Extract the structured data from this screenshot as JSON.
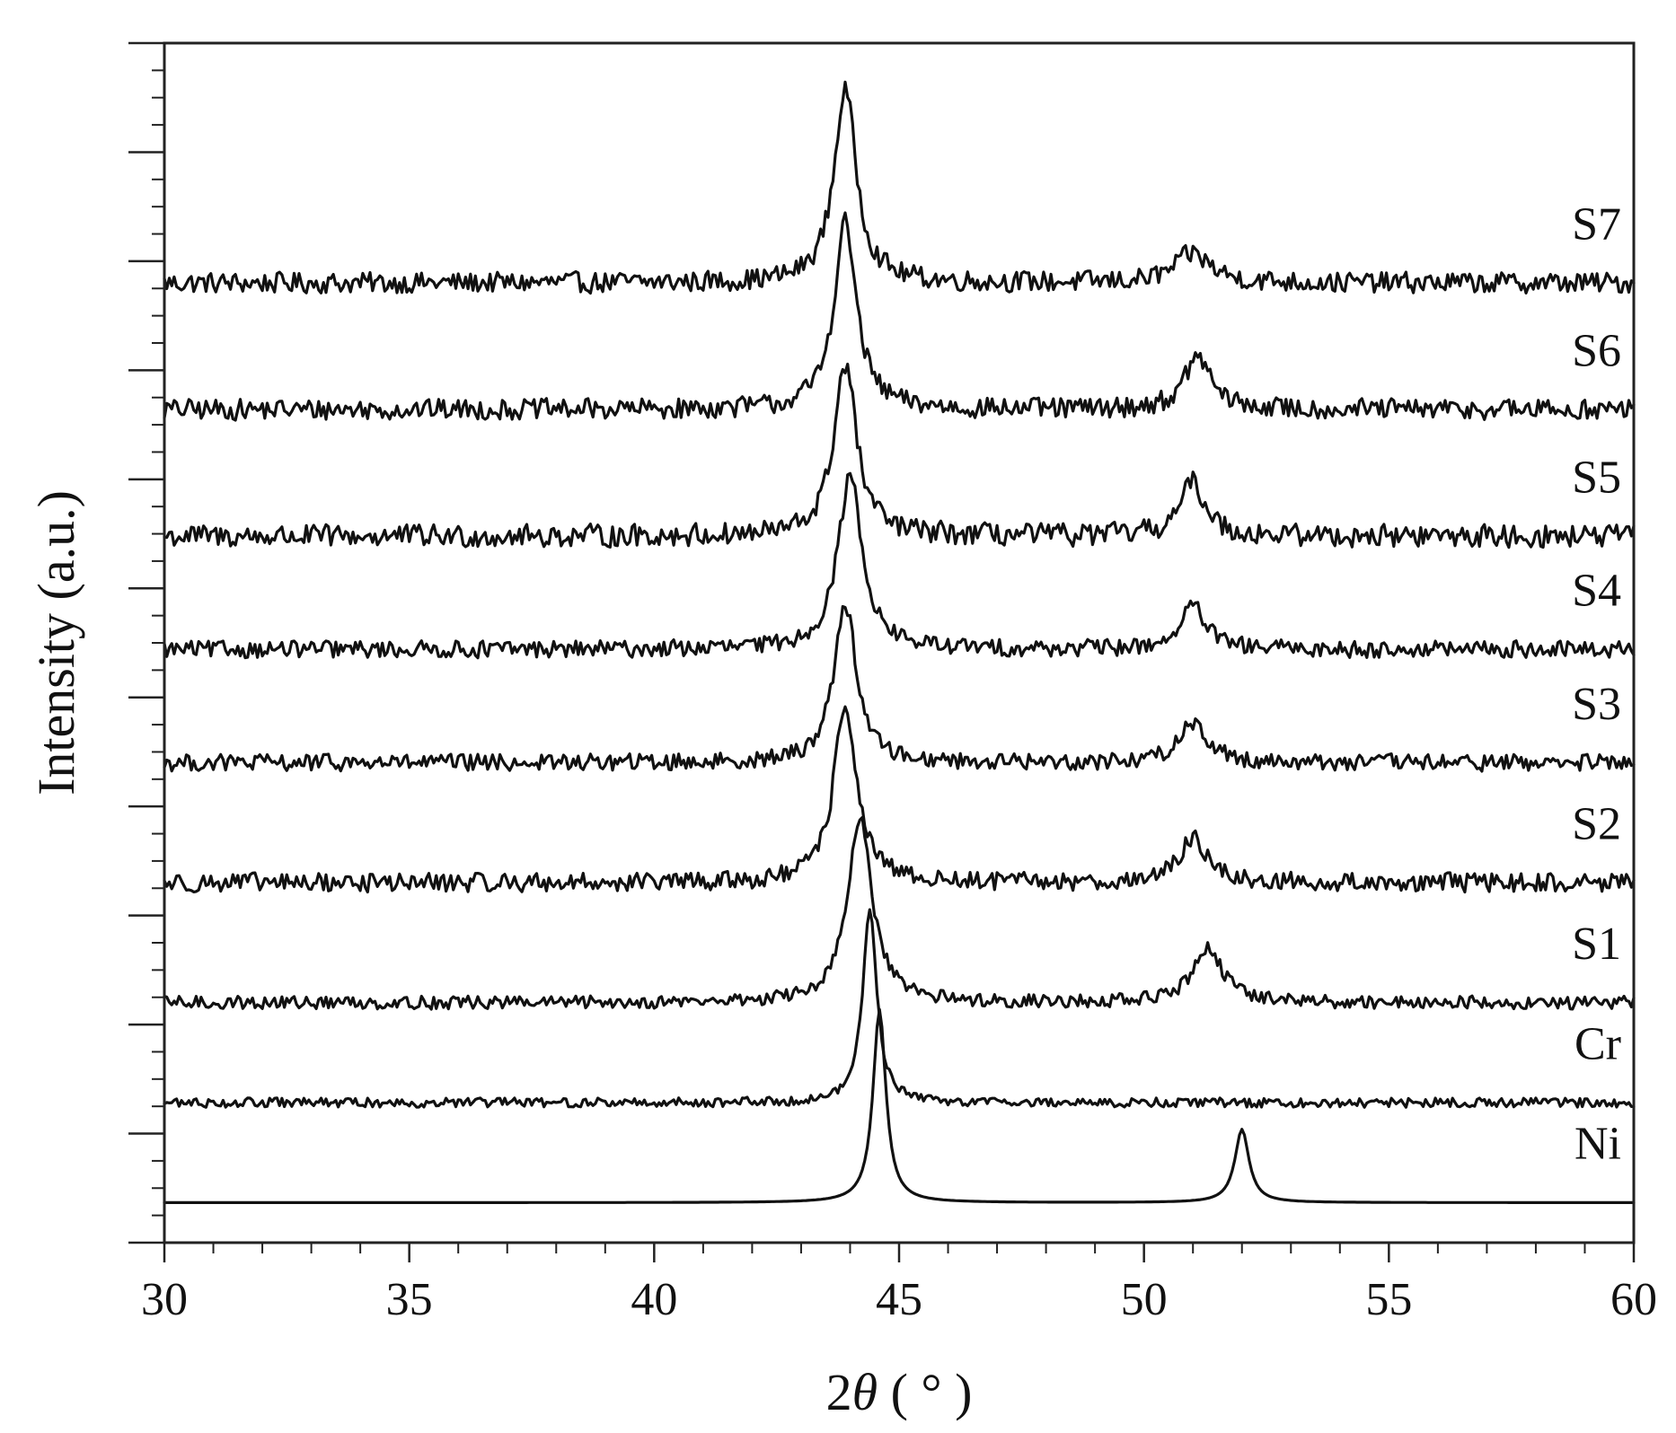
{
  "chart_data": {
    "type": "line",
    "xlabel_prefix": "2",
    "xlabel_symbol": "θ",
    "xlabel_suffix": " ( ° )",
    "ylabel": "Intensity (a.u.)",
    "xlim": [
      30,
      60
    ],
    "x_ticks": [
      30,
      35,
      40,
      45,
      50,
      55,
      60
    ],
    "y_ticks_labeled": false,
    "grid": false,
    "series": [
      {
        "name": "S7",
        "baseline": 7.2,
        "peaks": [
          {
            "x": 43.9,
            "height": 1.45,
            "width": 0.35
          },
          {
            "x": 51.0,
            "height": 0.22,
            "width": 0.55
          }
        ],
        "noise": 0.11
      },
      {
        "name": "S6",
        "baseline": 6.25,
        "peaks": [
          {
            "x": 43.9,
            "height": 1.4,
            "width": 0.35
          },
          {
            "x": 51.1,
            "height": 0.4,
            "width": 0.4
          }
        ],
        "noise": 0.11
      },
      {
        "name": "S5",
        "baseline": 5.3,
        "peaks": [
          {
            "x": 43.9,
            "height": 1.3,
            "width": 0.35
          },
          {
            "x": 51.0,
            "height": 0.4,
            "width": 0.4
          }
        ],
        "noise": 0.12
      },
      {
        "name": "S4",
        "baseline": 4.45,
        "peaks": [
          {
            "x": 44.0,
            "height": 1.3,
            "width": 0.38
          },
          {
            "x": 51.0,
            "height": 0.32,
            "width": 0.4
          }
        ],
        "noise": 0.09
      },
      {
        "name": "S3",
        "baseline": 3.6,
        "peaks": [
          {
            "x": 43.9,
            "height": 1.2,
            "width": 0.35
          },
          {
            "x": 51.0,
            "height": 0.3,
            "width": 0.45
          }
        ],
        "noise": 0.09
      },
      {
        "name": "S2",
        "baseline": 2.7,
        "peaks": [
          {
            "x": 43.9,
            "height": 1.35,
            "width": 0.35
          },
          {
            "x": 51.0,
            "height": 0.35,
            "width": 0.4
          }
        ],
        "noise": 0.1
      },
      {
        "name": "S1",
        "baseline": 1.8,
        "peaks": [
          {
            "x": 44.2,
            "height": 1.38,
            "width": 0.38
          },
          {
            "x": 51.3,
            "height": 0.42,
            "width": 0.45
          }
        ],
        "noise": 0.07
      },
      {
        "name": "Cr",
        "baseline": 1.05,
        "peaks": [
          {
            "x": 44.4,
            "height": 1.45,
            "width": 0.22
          }
        ],
        "noise": 0.05
      },
      {
        "name": "Ni",
        "baseline": 0.3,
        "peaks": [
          {
            "x": 44.6,
            "height": 1.45,
            "width": 0.2
          },
          {
            "x": 52.0,
            "height": 0.55,
            "width": 0.22
          }
        ],
        "noise": 0.0
      }
    ],
    "ylim": [
      0,
      9.0
    ]
  }
}
